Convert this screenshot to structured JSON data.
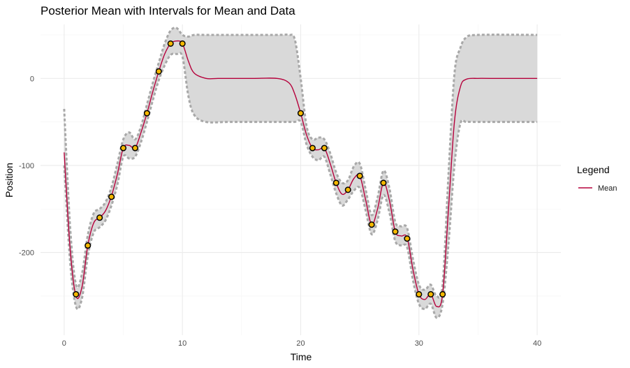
{
  "chart_data": {
    "type": "line",
    "title": "Posterior Mean with Intervals for Mean and Data",
    "xlabel": "Time",
    "ylabel": "Position",
    "xlim": [
      -2,
      42
    ],
    "ylim": [
      -295,
      62
    ],
    "x_ticks": [
      0,
      10,
      20,
      30,
      40
    ],
    "x_tick_labels": [
      "0",
      "10",
      "20",
      "30",
      "40"
    ],
    "y_ticks": [
      0,
      -100,
      -200
    ],
    "y_tick_labels": [
      "0",
      "-100",
      "-200"
    ],
    "grid": true,
    "legend": {
      "title": "Legend",
      "placement": "right",
      "entries": [
        {
          "label": "Mean",
          "color": "#b5003b"
        }
      ]
    },
    "colors": {
      "mean_line": "#b5003b",
      "band_fill": "#d9d9d9",
      "band_border": "#a8a8a8",
      "point_fill": "#f5b800",
      "point_stroke": "#000000",
      "grid": "#ebebeb"
    },
    "series": [
      {
        "name": "Mean",
        "x": [
          0,
          0.5,
          1,
          1.5,
          2,
          2.5,
          3,
          3.5,
          4,
          4.5,
          5,
          5.5,
          6,
          6.5,
          7,
          7.5,
          8,
          8.5,
          9,
          9.5,
          10,
          10.5,
          11,
          12,
          13,
          14,
          16,
          18,
          19,
          19.5,
          20,
          20.5,
          21,
          21.5,
          22,
          22.5,
          23,
          23.5,
          24,
          24.5,
          25,
          25.5,
          26,
          26.5,
          27,
          27.5,
          28,
          28.5,
          29,
          29.5,
          30,
          30.5,
          31,
          31.5,
          32,
          32.5,
          33,
          33.5,
          34,
          35,
          36,
          40
        ],
        "y": [
          -85,
          -195,
          -250,
          -240,
          -192,
          -166,
          -160,
          -152,
          -135,
          -110,
          -80,
          -77,
          -80,
          -62,
          -40,
          -15,
          8,
          28,
          40,
          43,
          40,
          20,
          6,
          0,
          0,
          0,
          0,
          0,
          -5,
          -18,
          -40,
          -65,
          -80,
          -82,
          -80,
          -98,
          -120,
          -133,
          -128,
          -115,
          -112,
          -140,
          -168,
          -150,
          -120,
          -140,
          -176,
          -181,
          -183,
          -220,
          -248,
          -254,
          -248,
          -262,
          -248,
          -150,
          -50,
          -10,
          -1,
          0,
          0,
          0
        ]
      },
      {
        "name": "Mean interval upper",
        "x": [
          0,
          0.5,
          1,
          1.5,
          2,
          2.5,
          3,
          3.5,
          4,
          4.5,
          5,
          5.5,
          6,
          6.5,
          7,
          7.5,
          8,
          8.5,
          9,
          9.5,
          10,
          10.5,
          11,
          12,
          14,
          18,
          19,
          19.5,
          20,
          20.5,
          21,
          21.5,
          22,
          22.5,
          23,
          23.5,
          24,
          24.5,
          25,
          25.5,
          26,
          26.5,
          27,
          27.5,
          28,
          28.5,
          29,
          29.5,
          30,
          30.5,
          31,
          31.5,
          32,
          32.5,
          33,
          33.5,
          34,
          35,
          40
        ],
        "y": [
          -35,
          -170,
          -237,
          -225,
          -180,
          -155,
          -150,
          -142,
          -125,
          -98,
          -70,
          -62,
          -70,
          -55,
          -30,
          -5,
          18,
          40,
          55,
          58,
          50,
          48,
          50,
          50,
          50,
          50,
          50,
          45,
          0,
          -55,
          -70,
          -68,
          -70,
          -86,
          -108,
          -120,
          -117,
          -101,
          -98,
          -128,
          -157,
          -137,
          -106,
          -126,
          -165,
          -170,
          -172,
          -208,
          -237,
          -243,
          -237,
          -250,
          -237,
          -110,
          5,
          35,
          47,
          50,
          50
        ]
      },
      {
        "name": "Mean interval lower",
        "x": [
          0,
          0.5,
          1,
          1.5,
          2,
          2.5,
          3,
          3.5,
          4,
          4.5,
          5,
          5.5,
          6,
          6.5,
          7,
          7.5,
          8,
          8.5,
          9,
          9.5,
          10,
          10.5,
          11,
          12,
          14,
          18,
          19,
          19.5,
          20,
          20.5,
          21,
          21.5,
          22,
          22.5,
          23,
          23.5,
          24,
          24.5,
          25,
          25.5,
          26,
          26.5,
          27,
          27.5,
          28,
          28.5,
          29,
          29.5,
          30,
          30.5,
          31,
          31.5,
          32,
          32.5,
          33,
          33.5,
          34,
          35,
          40
        ],
        "y": [
          -100,
          -210,
          -262,
          -253,
          -204,
          -177,
          -171,
          -163,
          -146,
          -122,
          -90,
          -92,
          -90,
          -73,
          -50,
          -25,
          -2,
          15,
          27,
          28,
          25,
          -20,
          -42,
          -50,
          -50,
          -50,
          -50,
          -50,
          -50,
          -76,
          -90,
          -94,
          -90,
          -110,
          -132,
          -146,
          -139,
          -129,
          -126,
          -152,
          -179,
          -163,
          -134,
          -154,
          -187,
          -192,
          -194,
          -232,
          -259,
          -265,
          -259,
          -275,
          -259,
          -190,
          -100,
          -52,
          -50,
          -50,
          -50
        ]
      },
      {
        "name": "Data",
        "x": [
          1,
          2,
          3,
          4,
          5,
          6,
          7,
          8,
          9,
          10,
          20,
          21,
          22,
          23,
          24,
          25,
          26,
          27,
          28,
          29,
          30,
          31,
          32
        ],
        "y": [
          -248,
          -192,
          -160,
          -136,
          -80,
          -80,
          -40,
          8,
          40,
          40,
          -40,
          -80,
          -80,
          -120,
          -128,
          -112,
          -168,
          -120,
          -176,
          -184,
          -248,
          -248,
          -248
        ]
      }
    ]
  }
}
